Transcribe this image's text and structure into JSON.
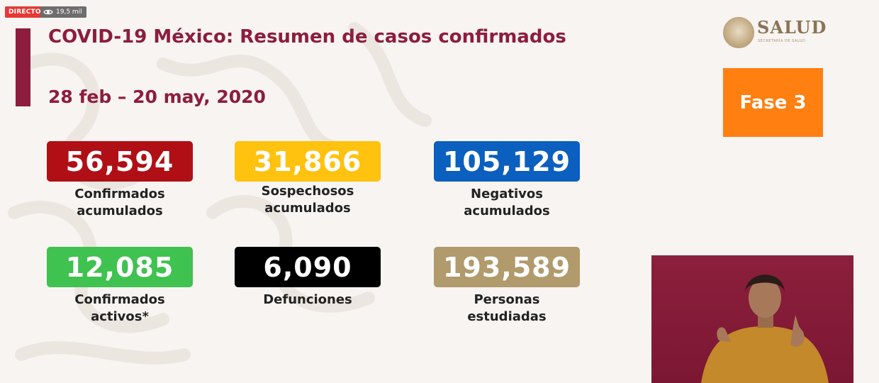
{
  "stream": {
    "live_label": "DIRECTO",
    "views": "19,5 mil",
    "views_icon": "eye-icon"
  },
  "header": {
    "title": "COVID-19 México: Resumen de casos confirmados",
    "date_range": "28 feb – 20 may, 2020"
  },
  "logo": {
    "text": "SALUD",
    "subtitle": "SECRETARÍA DE SALUD"
  },
  "phase": {
    "label": "Fase 3",
    "color": "#ff7f11"
  },
  "stats": [
    {
      "value": "56,594",
      "label_line1": "Confirmados",
      "label_line2": "acumulados",
      "color": "#b00f16",
      "text_color": "#ffffff"
    },
    {
      "value": "31,866",
      "label_line1": "Sospechosos",
      "label_line2": "acumulados",
      "color": "#ffc20e",
      "text_color": "#ffffff"
    },
    {
      "value": "105,129",
      "label_line1": "Negativos",
      "label_line2": "acumulados",
      "color": "#0a5fbf",
      "text_color": "#ffffff"
    },
    {
      "value": "12,085",
      "label_line1": "Confirmados",
      "label_line2": "activos*",
      "color": "#3fc24f",
      "text_color": "#ffffff"
    },
    {
      "value": "6,090",
      "label_line1": "Defunciones",
      "label_line2": "",
      "color": "#000000",
      "text_color": "#ffffff"
    },
    {
      "value": "193,589",
      "label_line1": "Personas",
      "label_line2": "estudiadas",
      "color": "#b19a6b",
      "text_color": "#ffffff"
    }
  ],
  "colors": {
    "brand": "#8c1d3e",
    "background": "#f7f4f1"
  }
}
